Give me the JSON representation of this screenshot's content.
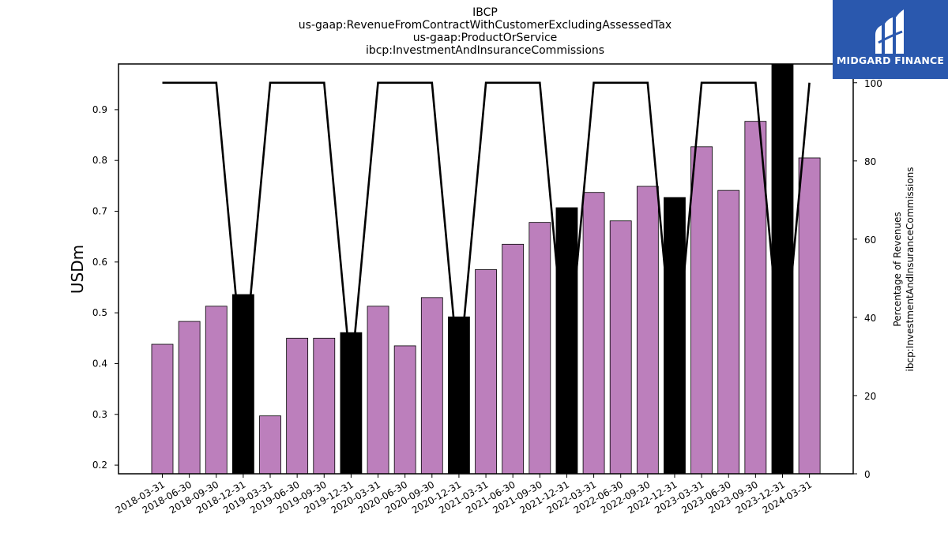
{
  "brand": {
    "name": "MIDGARD FINANCE",
    "color": "#2a58ae"
  },
  "chart_data": {
    "type": "bar",
    "title": [
      "IBCP",
      "us-gaap:RevenueFromContractWithCustomerExcludingAssessedTax",
      "us-gaap:ProductOrService",
      "ibcp:InvestmentAndInsuranceCommissions"
    ],
    "ylabel": "USDm",
    "y2label": [
      "Percentage of Revenues",
      "ibcp:InvestmentAndInsuranceCommissions"
    ],
    "ylim": [
      0.183,
      0.99
    ],
    "y2lim": [
      0,
      104.8
    ],
    "yticks": [
      0.2,
      0.3,
      0.4,
      0.5,
      0.6,
      0.7,
      0.8,
      0.9
    ],
    "y2ticks": [
      0,
      20,
      40,
      60,
      80,
      100
    ],
    "grid": false,
    "categories": [
      "2018-03-31",
      "2018-06-30",
      "2018-09-30",
      "2018-12-31",
      "2019-03-31",
      "2019-06-30",
      "2019-09-30",
      "2019-12-31",
      "2020-03-31",
      "2020-06-30",
      "2020-09-30",
      "2020-12-31",
      "2021-03-31",
      "2021-06-30",
      "2021-09-30",
      "2021-12-31",
      "2022-03-31",
      "2022-06-30",
      "2022-09-30",
      "2022-12-31",
      "2023-03-31",
      "2023-06-30",
      "2023-09-30",
      "2023-12-31",
      "2024-03-31"
    ],
    "series": [
      {
        "type": "bar",
        "values": [
          0.438,
          0.483,
          0.513,
          0.536,
          0.297,
          0.45,
          0.45,
          0.461,
          0.513,
          0.435,
          0.53,
          0.492,
          0.585,
          0.635,
          0.678,
          0.707,
          0.737,
          0.681,
          0.749,
          0.727,
          0.827,
          0.741,
          0.877,
          0.99,
          0.805
        ],
        "colors": [
          "#bc7fbc",
          "#bc7fbc",
          "#bc7fbc",
          "#000000",
          "#bc7fbc",
          "#bc7fbc",
          "#bc7fbc",
          "#000000",
          "#bc7fbc",
          "#bc7fbc",
          "#bc7fbc",
          "#000000",
          "#bc7fbc",
          "#bc7fbc",
          "#bc7fbc",
          "#000000",
          "#bc7fbc",
          "#bc7fbc",
          "#bc7fbc",
          "#000000",
          "#bc7fbc",
          "#bc7fbc",
          "#bc7fbc",
          "#000000",
          "#bc7fbc"
        ]
      },
      {
        "type": "line",
        "axis": "right",
        "color": "#000000",
        "values": [
          100,
          100,
          100,
          25,
          100,
          100,
          100,
          25,
          100,
          100,
          100,
          25,
          100,
          100,
          100,
          25,
          100,
          100,
          100,
          25,
          100,
          100,
          100,
          25,
          100
        ]
      }
    ]
  }
}
